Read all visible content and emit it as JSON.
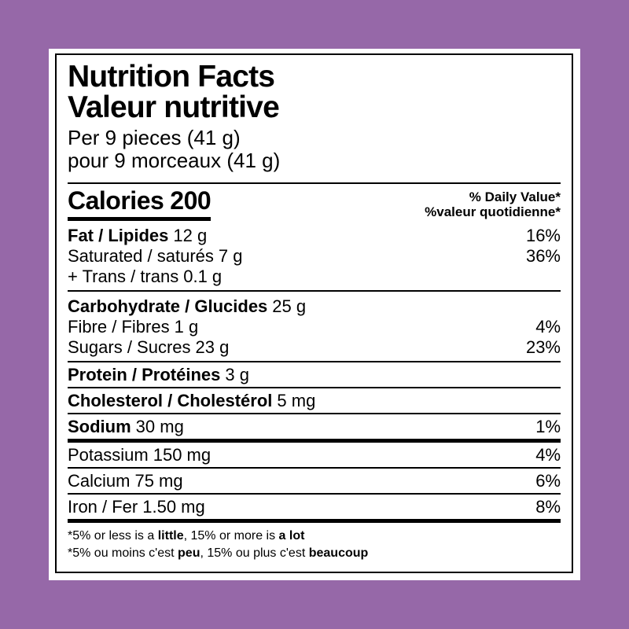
{
  "colors": {
    "background": "#9668a8",
    "card": "#ffffff",
    "border": "#000000",
    "text": "#000000"
  },
  "label": {
    "title_en": "Nutrition Facts",
    "title_fr": "Valeur nutritive",
    "serving_en": "Per 9 pieces (41 g)",
    "serving_fr": "pour 9 morceaux (41 g)",
    "calories": {
      "label": "Calories",
      "value": "200"
    },
    "daily_value_en": "% Daily Value*",
    "daily_value_fr": "%valeur quotidienne*",
    "rows": [
      {
        "name": "Fat / Lipides",
        "amount": "12 g",
        "dv": "16%"
      },
      {
        "name": "Saturated / saturés",
        "amount": "7 g",
        "dv": "36%"
      },
      {
        "name": "+ Trans / trans",
        "amount": "0.1 g",
        "dv": ""
      },
      {
        "name": "Carbohydrate / Glucides",
        "amount": "25 g",
        "dv": ""
      },
      {
        "name": "Fibre / Fibres",
        "amount": "1 g",
        "dv": "4%"
      },
      {
        "name": "Sugars / Sucres",
        "amount": "23 g",
        "dv": "23%"
      },
      {
        "name": "Protein / Protéines",
        "amount": "3 g",
        "dv": ""
      },
      {
        "name": "Cholesterol / Cholestérol",
        "amount": "5 mg",
        "dv": ""
      },
      {
        "name": "Sodium",
        "amount": "30 mg",
        "dv": "1%"
      },
      {
        "name": "Potassium",
        "amount": "150 mg",
        "dv": "4%"
      },
      {
        "name": "Calcium",
        "amount": "75 mg",
        "dv": "6%"
      },
      {
        "name": "Iron / Fer",
        "amount": "1.50 mg",
        "dv": "8%"
      }
    ],
    "footnote_en": {
      "pre": "*5% or less is a ",
      "bold1": "little",
      "mid": ", 15% or more is ",
      "bold2": "a lot"
    },
    "footnote_fr": {
      "pre": "*5% ou moins c'est ",
      "bold1": "peu",
      "mid": ", 15% ou plus c'est ",
      "bold2": "beaucoup"
    }
  }
}
